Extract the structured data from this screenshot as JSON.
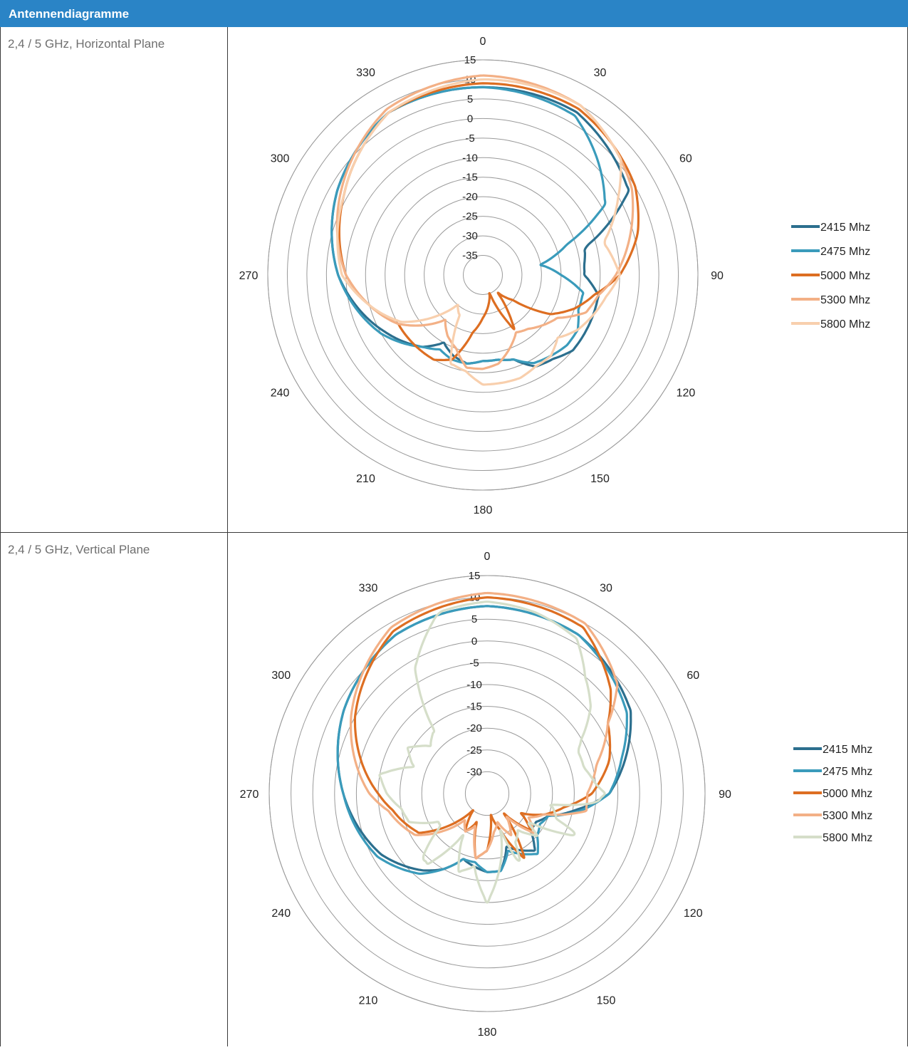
{
  "header": {
    "title": "Antennendiagramme"
  },
  "rows": [
    {
      "label": "2,4 / 5 GHz, Horizontal Plane"
    },
    {
      "label": "2,4 / 5 GHz, Vertical Plane"
    }
  ],
  "chart_data": [
    {
      "type": "polar-line",
      "title": "",
      "angle_labels": [
        "0",
        "30",
        "60",
        "90",
        "120",
        "150",
        "180",
        "210",
        "240",
        "270",
        "300",
        "330"
      ],
      "radial_ticks": [
        "15",
        "10",
        "5",
        "0",
        "-5",
        "-10",
        "-15",
        "-20",
        "-25",
        "-30",
        "-35"
      ],
      "rlim": [
        -40,
        15
      ],
      "legend_position": "right",
      "series": [
        {
          "name": "2415 Mhz",
          "color": "#2c6f8e",
          "angles": [
            0,
            30,
            60,
            75,
            85,
            90,
            100,
            110,
            120,
            130,
            140,
            150,
            160,
            170,
            180,
            190,
            200,
            210,
            220,
            240,
            270,
            300,
            330
          ],
          "values": [
            8,
            8,
            3,
            -13,
            -14,
            -14,
            -10,
            -10,
            -10,
            -10,
            -12,
            -13,
            -17,
            -18,
            -18,
            -17,
            -18,
            -20,
            -16,
            -11,
            -3,
            3,
            8
          ]
        },
        {
          "name": "2475 Mhz",
          "color": "#3a9bbb",
          "angles": [
            0,
            30,
            60,
            70,
            80,
            90,
            100,
            110,
            120,
            130,
            140,
            150,
            160,
            170,
            180,
            190,
            200,
            210,
            220,
            240,
            270,
            300,
            330
          ],
          "values": [
            8,
            7,
            -4,
            -17,
            -25,
            -20,
            -14,
            -14,
            -12,
            -12,
            -13,
            -14,
            -17,
            -18,
            -18,
            -17,
            -17,
            -18,
            -16,
            -10,
            -3,
            3,
            8
          ]
        },
        {
          "name": "5000 Mhz",
          "color": "#dd6e22",
          "angles": [
            0,
            30,
            60,
            75,
            90,
            100,
            110,
            120,
            130,
            140,
            150,
            160,
            170,
            180,
            190,
            200,
            210,
            220,
            240,
            270,
            300,
            330
          ],
          "values": [
            9,
            9,
            5,
            1,
            -5,
            -11,
            -15,
            -20,
            -30,
            -34,
            -24,
            -35,
            -32,
            -29,
            -25,
            -17,
            -15,
            -15,
            -15,
            -5,
            1,
            8
          ]
        },
        {
          "name": "5300 Mhz",
          "color": "#f3b086",
          "angles": [
            0,
            30,
            60,
            75,
            90,
            100,
            110,
            120,
            130,
            140,
            150,
            160,
            170,
            180,
            190,
            200,
            210,
            220,
            240,
            270,
            300,
            330
          ],
          "values": [
            11,
            10,
            4,
            -1,
            -6,
            -10,
            -12,
            -18,
            -20,
            -22,
            -23,
            -20,
            -17,
            -16,
            -16,
            -20,
            -22,
            -25,
            -15,
            -5,
            2,
            9
          ]
        },
        {
          "name": "5800 Mhz",
          "color": "#f8cfad",
          "angles": [
            0,
            30,
            50,
            60,
            75,
            90,
            100,
            110,
            120,
            130,
            140,
            150,
            160,
            170,
            180,
            190,
            200,
            210,
            220,
            240,
            270,
            300,
            330
          ],
          "values": [
            10,
            10,
            6,
            0,
            -8,
            -5,
            -8,
            -10,
            -12,
            -15,
            -13,
            -13,
            -12,
            -12,
            -12,
            -15,
            -16,
            -28,
            -30,
            -16,
            -4,
            1,
            8
          ]
        }
      ]
    },
    {
      "type": "polar-line",
      "title": "",
      "angle_labels": [
        "0",
        "30",
        "60",
        "90",
        "120",
        "150",
        "180",
        "210",
        "240",
        "270",
        "300",
        "330"
      ],
      "radial_ticks": [
        "15",
        "10",
        "5",
        "0",
        "-5",
        "-10",
        "-15",
        "-20",
        "-25",
        "-30"
      ],
      "rlim": [
        -35,
        15
      ],
      "legend_position": "right",
      "series": [
        {
          "name": "2415 Mhz",
          "color": "#2c6f8e",
          "angles": [
            0,
            30,
            60,
            75,
            90,
            100,
            110,
            120,
            130,
            140,
            150,
            160,
            170,
            180,
            190,
            200,
            210,
            220,
            240,
            270,
            300,
            330
          ],
          "values": [
            8,
            7,
            3,
            -2,
            -7,
            -14,
            -20,
            -22,
            -22,
            -18,
            -20,
            -22,
            -17,
            -17,
            -18,
            -19,
            -15,
            -12,
            -7,
            -2,
            3,
            7
          ]
        },
        {
          "name": "2475 Mhz",
          "color": "#3a9bbb",
          "angles": [
            0,
            30,
            60,
            75,
            90,
            100,
            110,
            120,
            130,
            140,
            150,
            160,
            170,
            180,
            190,
            200,
            210,
            220,
            240,
            270,
            300,
            330
          ],
          "values": [
            8,
            7,
            2,
            -3,
            -7,
            -13,
            -20,
            -21,
            -20,
            -17,
            -19,
            -21,
            -17,
            -17,
            -19,
            -19,
            -15,
            -11,
            -6,
            -2,
            3,
            7
          ]
        },
        {
          "name": "5000 Mhz",
          "color": "#dd6e22",
          "angles": [
            0,
            30,
            50,
            60,
            75,
            90,
            100,
            110,
            120,
            130,
            140,
            150,
            160,
            170,
            180,
            190,
            200,
            210,
            220,
            240,
            260,
            270,
            300,
            330
          ],
          "values": [
            10,
            9,
            2,
            -3,
            -6,
            -11,
            -17,
            -21,
            -26,
            -22,
            -29,
            -18,
            -26,
            -30,
            -22,
            -20,
            -28,
            -25,
            -30,
            -17,
            -13,
            -10,
            0,
            8
          ]
        },
        {
          "name": "5300 Mhz",
          "color": "#f3b086",
          "angles": [
            0,
            30,
            50,
            60,
            75,
            90,
            100,
            110,
            120,
            130,
            140,
            150,
            160,
            170,
            180,
            190,
            200,
            210,
            220,
            240,
            260,
            270,
            300,
            330
          ],
          "values": [
            11,
            10,
            4,
            -3,
            -9,
            -12,
            -12,
            -21,
            -24,
            -21,
            -28,
            -24,
            -28,
            -26,
            -22,
            -20,
            -27,
            -25,
            -27,
            -16,
            -12,
            -8,
            1,
            9
          ]
        },
        {
          "name": "5800 Mhz",
          "color": "#d5dec9",
          "angles": [
            0,
            15,
            30,
            40,
            50,
            60,
            65,
            75,
            85,
            90,
            95,
            100,
            110,
            115,
            125,
            130,
            140,
            150,
            155,
            160,
            170,
            175,
            180,
            185,
            190,
            200,
            210,
            220,
            225,
            235,
            240,
            250,
            260,
            270,
            280,
            290,
            300,
            310,
            320,
            330,
            345
          ],
          "values": [
            9,
            8,
            6,
            0,
            -4,
            -10,
            -12,
            -12,
            -10,
            -8,
            -10,
            -20,
            -18,
            -12,
            -24,
            -20,
            -24,
            -22,
            -17,
            -26,
            -18,
            -14,
            -10,
            -14,
            -18,
            -16,
            -24,
            -14,
            -14,
            -22,
            -22,
            -16,
            -15,
            -12,
            -10,
            -17,
            -14,
            -18,
            -16,
            -2,
            8
          ]
        }
      ]
    }
  ]
}
